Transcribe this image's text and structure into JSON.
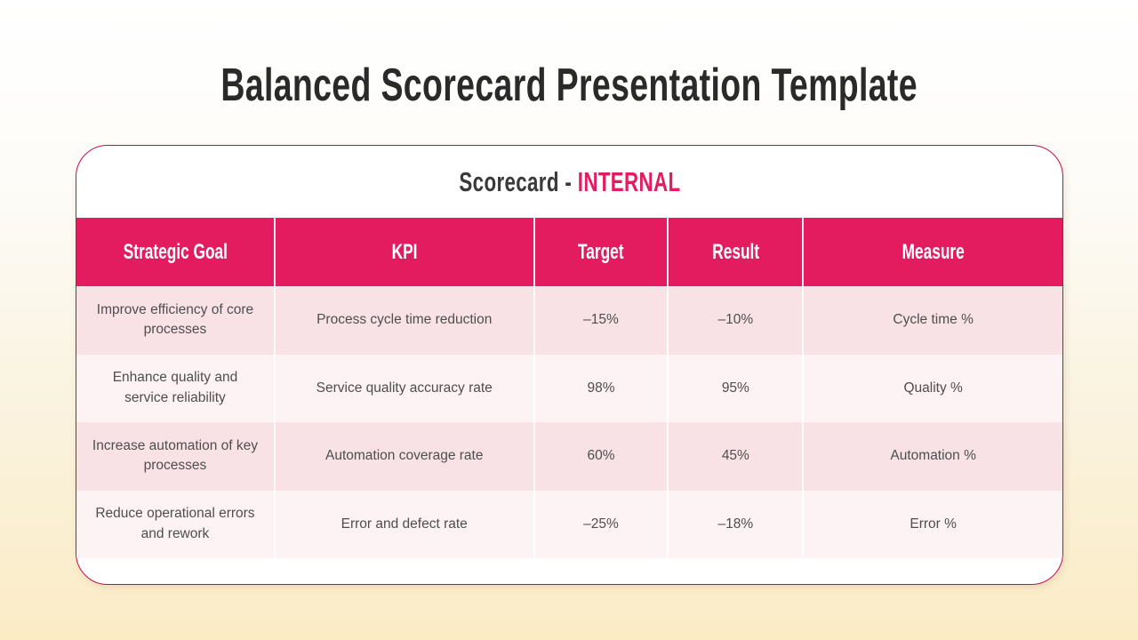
{
  "page": {
    "title": "Balanced Scorecard Presentation Template"
  },
  "card": {
    "subtitle_prefix": "Scorecard - ",
    "subtitle_highlight": "INTERNAL",
    "table": {
      "headers": [
        "Strategic Goal",
        "KPI",
        "Target",
        "Result",
        "Measure"
      ],
      "rows": [
        {
          "goal": "Improve efficiency of core processes",
          "kpi": "Process cycle time reduction",
          "target": "–15%",
          "result": "–10%",
          "measure": "Cycle time %"
        },
        {
          "goal": "Enhance quality and service reliability",
          "kpi": "Service quality accuracy rate",
          "target": "98%",
          "result": "95%",
          "measure": "Quality %"
        },
        {
          "goal": "Increase automation of key processes",
          "kpi": "Automation coverage rate",
          "target": "60%",
          "result": "45%",
          "measure": "Automation %"
        },
        {
          "goal": "Reduce operational errors and rework",
          "kpi": "Error and defect rate",
          "target": "–25%",
          "result": "–18%",
          "measure": "Error %"
        }
      ]
    }
  },
  "colors": {
    "accent_pink": "#e31c5f",
    "card_border": "#c2124e",
    "row_odd_bg": "#f9e2e6",
    "row_even_bg": "#fdf2f4",
    "title_text": "#2a2a2a",
    "body_text": "#4e4e4e",
    "background_top": "#ffffff",
    "background_bottom": "#fbecc6"
  }
}
